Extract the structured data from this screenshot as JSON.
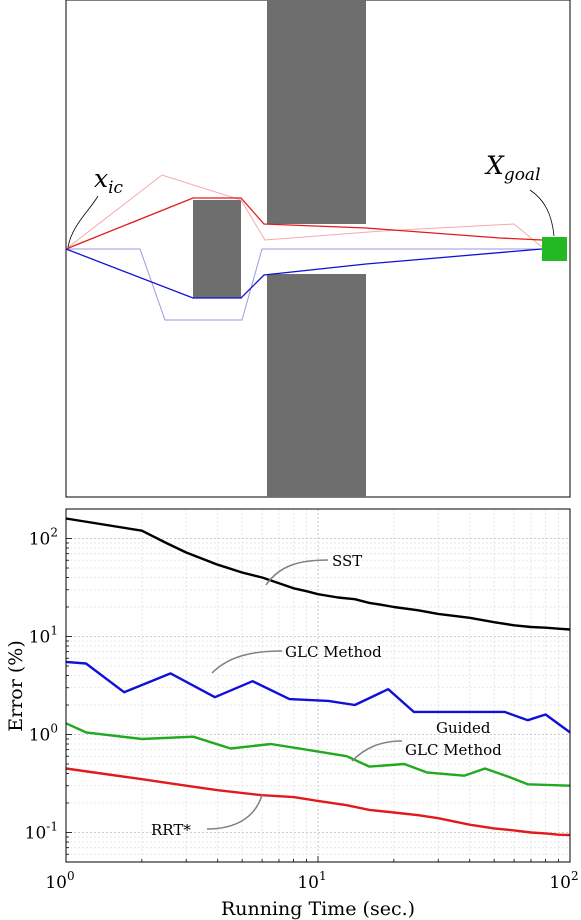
{
  "top_panel": {
    "start_label": "x",
    "start_label_sub": "ic",
    "goal_label": "X",
    "goal_label_sub": "goal",
    "colors": {
      "obstacle": "#6e6e6e",
      "goal": "#22b922",
      "path_red": "#e31a1c",
      "path_red_light": "#f6a8a8",
      "path_blue": "#1010d8",
      "path_blue_light": "#9a9ae0"
    }
  },
  "chart_data": {
    "type": "line",
    "xlabel": "Running Time (sec.)",
    "ylabel": "Error (%)",
    "xscale": "log",
    "yscale": "log",
    "xlim": [
      1,
      100
    ],
    "ylim": [
      0.05,
      200
    ],
    "x_ticks": [
      {
        "value": 1,
        "base": "10",
        "exp": "0"
      },
      {
        "value": 10,
        "base": "10",
        "exp": "1"
      },
      {
        "value": 100,
        "base": "10",
        "exp": "2"
      }
    ],
    "y_ticks": [
      {
        "value": 0.1,
        "base": "10",
        "exp": "-1"
      },
      {
        "value": 1,
        "base": "10",
        "exp": "0"
      },
      {
        "value": 10,
        "base": "10",
        "exp": "1"
      },
      {
        "value": 100,
        "base": "10",
        "exp": "2"
      }
    ],
    "grid": true,
    "series": [
      {
        "name": "SST",
        "color": "#000000",
        "x": [
          1,
          2,
          2.5,
          3,
          4,
          5,
          6,
          7,
          8,
          9,
          10,
          12,
          14,
          16,
          18,
          20,
          25,
          30,
          40,
          50,
          60,
          70,
          80,
          90,
          100
        ],
        "y": [
          160,
          120,
          90,
          72,
          54,
          45,
          40,
          35,
          31,
          29,
          27,
          25,
          24,
          22,
          21,
          20,
          18.5,
          17,
          15.5,
          14,
          13,
          12.5,
          12.3,
          12,
          11.8
        ]
      },
      {
        "name": "GLC Method",
        "color": "#1010d8",
        "x": [
          1,
          1.2,
          1.7,
          2.6,
          3.9,
          5.5,
          7.7,
          11,
          14,
          19,
          24,
          34,
          43,
          55,
          68,
          80,
          100
        ],
        "y": [
          5.5,
          5.3,
          2.7,
          4.2,
          2.4,
          3.5,
          2.3,
          2.2,
          2.0,
          2.9,
          1.7,
          1.7,
          1.7,
          1.7,
          1.4,
          1.6,
          1.05
        ]
      },
      {
        "name": "Guided GLC Method",
        "color": "#1faa1f",
        "x": [
          1,
          1.2,
          2,
          3.2,
          4.5,
          6.5,
          9,
          13,
          16,
          22,
          27,
          38,
          46,
          57,
          68,
          100
        ],
        "y": [
          1.3,
          1.05,
          0.9,
          0.95,
          0.72,
          0.8,
          0.7,
          0.6,
          0.47,
          0.5,
          0.41,
          0.38,
          0.45,
          0.37,
          0.31,
          0.3
        ]
      },
      {
        "name": "RRT*",
        "color": "#e31a1c",
        "x": [
          1,
          2,
          3,
          4,
          6,
          8,
          10,
          13,
          16,
          20,
          25,
          30,
          40,
          50,
          60,
          70,
          80,
          90,
          100
        ],
        "y": [
          0.45,
          0.35,
          0.3,
          0.27,
          0.24,
          0.23,
          0.21,
          0.19,
          0.17,
          0.16,
          0.15,
          0.14,
          0.12,
          0.11,
          0.105,
          0.1,
          0.098,
          0.095,
          0.094
        ]
      }
    ],
    "annotations": [
      {
        "text": "SST"
      },
      {
        "text": "GLC Method"
      },
      {
        "text": "Guided"
      },
      {
        "text": "GLC Method"
      },
      {
        "text": "RRT*"
      }
    ]
  }
}
